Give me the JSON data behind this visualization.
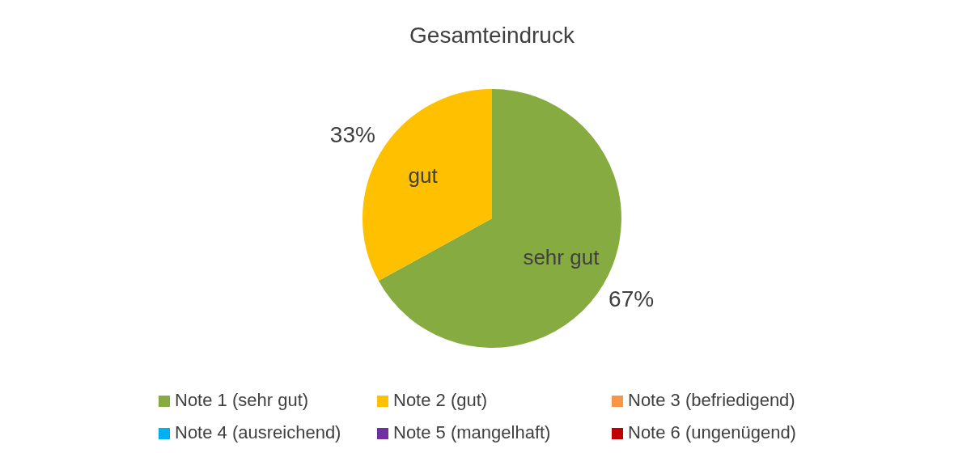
{
  "chart_data": {
    "type": "pie",
    "title": "Gesamteindruck",
    "categories": [
      "Note 1 (sehr gut)",
      "Note 2 (gut)",
      "Note 3 (befriedigend)",
      "Note 4 (ausreichend)",
      "Note 5 (mangelhaft)",
      "Note 6 (ungenügend)"
    ],
    "values": [
      67,
      33,
      0,
      0,
      0,
      0
    ],
    "colors": [
      "#86ac41",
      "#ffc000",
      "#f79646",
      "#00b0f0",
      "#7030a0",
      "#c00000"
    ],
    "value_labels": [
      "67%",
      "33%",
      null,
      null,
      null,
      null
    ],
    "annotations": [
      {
        "text": "sehr gut",
        "x": "Note 1 (sehr gut)"
      },
      {
        "text": "gut",
        "x": "Note 2 (gut)"
      }
    ],
    "legend": "bottom"
  }
}
